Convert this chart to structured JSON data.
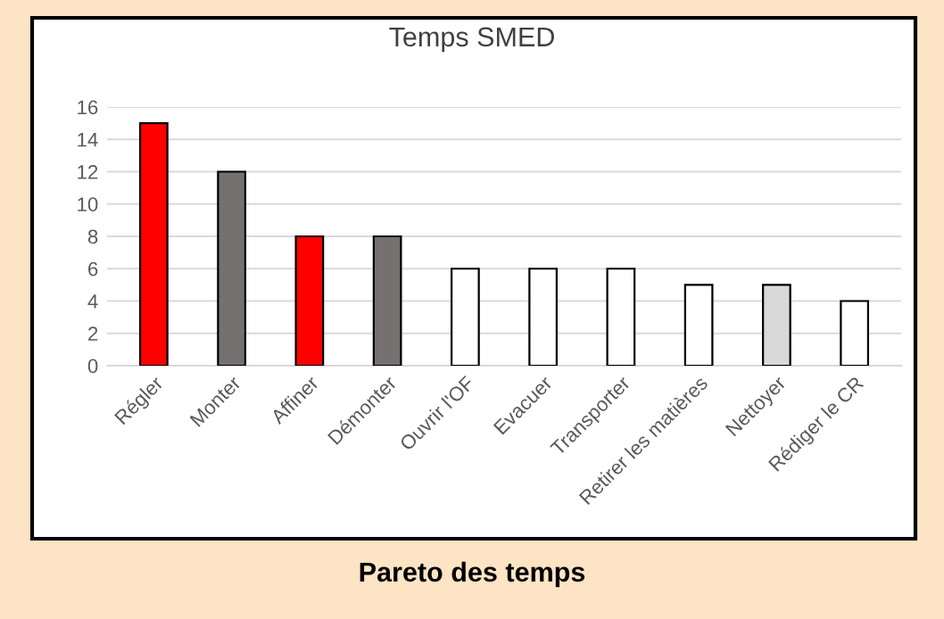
{
  "chart_data": {
    "type": "bar",
    "title": "Temps SMED",
    "categories": [
      "Régler",
      "Monter",
      "Affiner",
      "Démonter",
      "Ouvrir l'OF",
      "Evacuer",
      "Transporter",
      "Retirer les matières",
      "Nettoyer",
      "Rédiger le CR"
    ],
    "values": [
      15,
      12,
      8,
      8,
      6,
      6,
      6,
      5,
      5,
      4
    ],
    "colors": [
      "#ff0000",
      "#767171",
      "#ff0000",
      "#767171",
      "#ffffff",
      "#ffffff",
      "#ffffff",
      "#ffffff",
      "#d9d9d9",
      "#ffffff"
    ],
    "ylim": [
      0,
      16
    ],
    "yticks": [
      0,
      2,
      4,
      6,
      8,
      10,
      12,
      14,
      16
    ],
    "grid": "y",
    "annotations": [
      "Pareto des temps"
    ]
  }
}
